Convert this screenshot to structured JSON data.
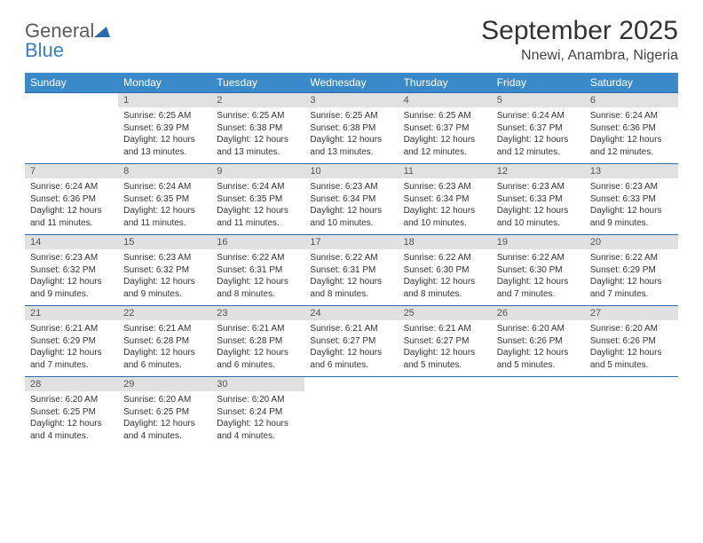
{
  "logo": {
    "word1": "General",
    "word2": "Blue"
  },
  "title": "September 2025",
  "location": "Nnewi, Anambra, Nigeria",
  "colors": {
    "header_bg": "#3a8ac9",
    "header_text": "#ffffff",
    "strip_bg": "#e1e1e1",
    "strip_text": "#555555",
    "rule": "#2a6aa8",
    "title_text": "#333333",
    "body_text": "#333333",
    "logo_gray": "#5a5a5a",
    "logo_blue": "#3a7fc4"
  },
  "weekdays": [
    "Sunday",
    "Monday",
    "Tuesday",
    "Wednesday",
    "Thursday",
    "Friday",
    "Saturday"
  ],
  "weeks": [
    [
      {
        "n": "",
        "sunrise": "",
        "sunset": "",
        "daylight": ""
      },
      {
        "n": "1",
        "sunrise": "Sunrise: 6:25 AM",
        "sunset": "Sunset: 6:39 PM",
        "daylight": "Daylight: 12 hours and 13 minutes."
      },
      {
        "n": "2",
        "sunrise": "Sunrise: 6:25 AM",
        "sunset": "Sunset: 6:38 PM",
        "daylight": "Daylight: 12 hours and 13 minutes."
      },
      {
        "n": "3",
        "sunrise": "Sunrise: 6:25 AM",
        "sunset": "Sunset: 6:38 PM",
        "daylight": "Daylight: 12 hours and 13 minutes."
      },
      {
        "n": "4",
        "sunrise": "Sunrise: 6:25 AM",
        "sunset": "Sunset: 6:37 PM",
        "daylight": "Daylight: 12 hours and 12 minutes."
      },
      {
        "n": "5",
        "sunrise": "Sunrise: 6:24 AM",
        "sunset": "Sunset: 6:37 PM",
        "daylight": "Daylight: 12 hours and 12 minutes."
      },
      {
        "n": "6",
        "sunrise": "Sunrise: 6:24 AM",
        "sunset": "Sunset: 6:36 PM",
        "daylight": "Daylight: 12 hours and 12 minutes."
      }
    ],
    [
      {
        "n": "7",
        "sunrise": "Sunrise: 6:24 AM",
        "sunset": "Sunset: 6:36 PM",
        "daylight": "Daylight: 12 hours and 11 minutes."
      },
      {
        "n": "8",
        "sunrise": "Sunrise: 6:24 AM",
        "sunset": "Sunset: 6:35 PM",
        "daylight": "Daylight: 12 hours and 11 minutes."
      },
      {
        "n": "9",
        "sunrise": "Sunrise: 6:24 AM",
        "sunset": "Sunset: 6:35 PM",
        "daylight": "Daylight: 12 hours and 11 minutes."
      },
      {
        "n": "10",
        "sunrise": "Sunrise: 6:23 AM",
        "sunset": "Sunset: 6:34 PM",
        "daylight": "Daylight: 12 hours and 10 minutes."
      },
      {
        "n": "11",
        "sunrise": "Sunrise: 6:23 AM",
        "sunset": "Sunset: 6:34 PM",
        "daylight": "Daylight: 12 hours and 10 minutes."
      },
      {
        "n": "12",
        "sunrise": "Sunrise: 6:23 AM",
        "sunset": "Sunset: 6:33 PM",
        "daylight": "Daylight: 12 hours and 10 minutes."
      },
      {
        "n": "13",
        "sunrise": "Sunrise: 6:23 AM",
        "sunset": "Sunset: 6:33 PM",
        "daylight": "Daylight: 12 hours and 9 minutes."
      }
    ],
    [
      {
        "n": "14",
        "sunrise": "Sunrise: 6:23 AM",
        "sunset": "Sunset: 6:32 PM",
        "daylight": "Daylight: 12 hours and 9 minutes."
      },
      {
        "n": "15",
        "sunrise": "Sunrise: 6:23 AM",
        "sunset": "Sunset: 6:32 PM",
        "daylight": "Daylight: 12 hours and 9 minutes."
      },
      {
        "n": "16",
        "sunrise": "Sunrise: 6:22 AM",
        "sunset": "Sunset: 6:31 PM",
        "daylight": "Daylight: 12 hours and 8 minutes."
      },
      {
        "n": "17",
        "sunrise": "Sunrise: 6:22 AM",
        "sunset": "Sunset: 6:31 PM",
        "daylight": "Daylight: 12 hours and 8 minutes."
      },
      {
        "n": "18",
        "sunrise": "Sunrise: 6:22 AM",
        "sunset": "Sunset: 6:30 PM",
        "daylight": "Daylight: 12 hours and 8 minutes."
      },
      {
        "n": "19",
        "sunrise": "Sunrise: 6:22 AM",
        "sunset": "Sunset: 6:30 PM",
        "daylight": "Daylight: 12 hours and 7 minutes."
      },
      {
        "n": "20",
        "sunrise": "Sunrise: 6:22 AM",
        "sunset": "Sunset: 6:29 PM",
        "daylight": "Daylight: 12 hours and 7 minutes."
      }
    ],
    [
      {
        "n": "21",
        "sunrise": "Sunrise: 6:21 AM",
        "sunset": "Sunset: 6:29 PM",
        "daylight": "Daylight: 12 hours and 7 minutes."
      },
      {
        "n": "22",
        "sunrise": "Sunrise: 6:21 AM",
        "sunset": "Sunset: 6:28 PM",
        "daylight": "Daylight: 12 hours and 6 minutes."
      },
      {
        "n": "23",
        "sunrise": "Sunrise: 6:21 AM",
        "sunset": "Sunset: 6:28 PM",
        "daylight": "Daylight: 12 hours and 6 minutes."
      },
      {
        "n": "24",
        "sunrise": "Sunrise: 6:21 AM",
        "sunset": "Sunset: 6:27 PM",
        "daylight": "Daylight: 12 hours and 6 minutes."
      },
      {
        "n": "25",
        "sunrise": "Sunrise: 6:21 AM",
        "sunset": "Sunset: 6:27 PM",
        "daylight": "Daylight: 12 hours and 5 minutes."
      },
      {
        "n": "26",
        "sunrise": "Sunrise: 6:20 AM",
        "sunset": "Sunset: 6:26 PM",
        "daylight": "Daylight: 12 hours and 5 minutes."
      },
      {
        "n": "27",
        "sunrise": "Sunrise: 6:20 AM",
        "sunset": "Sunset: 6:26 PM",
        "daylight": "Daylight: 12 hours and 5 minutes."
      }
    ],
    [
      {
        "n": "28",
        "sunrise": "Sunrise: 6:20 AM",
        "sunset": "Sunset: 6:25 PM",
        "daylight": "Daylight: 12 hours and 4 minutes."
      },
      {
        "n": "29",
        "sunrise": "Sunrise: 6:20 AM",
        "sunset": "Sunset: 6:25 PM",
        "daylight": "Daylight: 12 hours and 4 minutes."
      },
      {
        "n": "30",
        "sunrise": "Sunrise: 6:20 AM",
        "sunset": "Sunset: 6:24 PM",
        "daylight": "Daylight: 12 hours and 4 minutes."
      },
      {
        "n": "",
        "sunrise": "",
        "sunset": "",
        "daylight": ""
      },
      {
        "n": "",
        "sunrise": "",
        "sunset": "",
        "daylight": ""
      },
      {
        "n": "",
        "sunrise": "",
        "sunset": "",
        "daylight": ""
      },
      {
        "n": "",
        "sunrise": "",
        "sunset": "",
        "daylight": ""
      }
    ]
  ]
}
